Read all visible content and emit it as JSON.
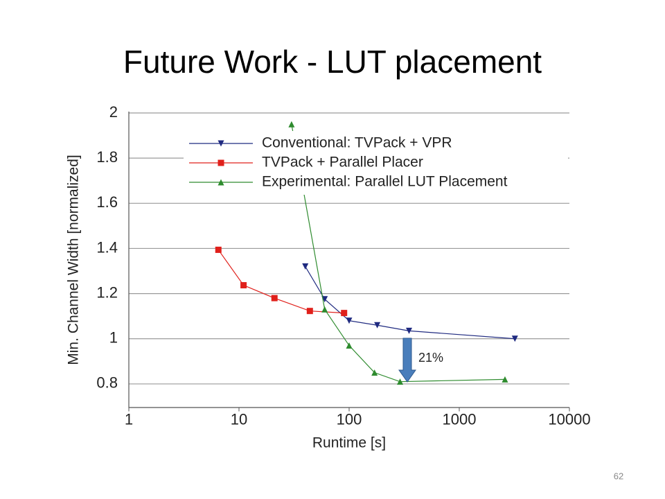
{
  "title": "Future Work - LUT placement",
  "page_number": "62",
  "chart_data": {
    "type": "line",
    "xlabel": "Runtime [s]",
    "ylabel": "Min. Channel Width [normalized]",
    "xscale": "log",
    "xlim": [
      1,
      10000
    ],
    "xticks": [
      1,
      10,
      100,
      1000,
      10000
    ],
    "ylim": [
      0.7,
      2
    ],
    "yticks": [
      0.8,
      1,
      1.2,
      1.4,
      1.6,
      1.8,
      2
    ],
    "grid": true,
    "legend": "top-right",
    "annotation": "21%",
    "series": [
      {
        "name": "Conventional: TVPack + VPR",
        "color": "#1f2a80",
        "marker": "triangle-down",
        "x": [
          40,
          60,
          100,
          180,
          350,
          3200
        ],
        "values": [
          1.32,
          1.175,
          1.08,
          1.06,
          1.035,
          1.0
        ]
      },
      {
        "name": "TVPack +  Parallel Placer",
        "color": "#e0201b",
        "marker": "square",
        "x": [
          6.5,
          11,
          21,
          44,
          90
        ],
        "values": [
          1.394,
          1.237,
          1.18,
          1.123,
          1.114
        ]
      },
      {
        "name": "Experimental: Parallel LUT Placement",
        "color": "#2e8b2e",
        "marker": "triangle-up",
        "x": [
          30,
          60,
          100,
          170,
          290,
          2600
        ],
        "values": [
          1.95,
          1.13,
          0.97,
          0.85,
          0.81,
          0.82
        ]
      }
    ]
  }
}
